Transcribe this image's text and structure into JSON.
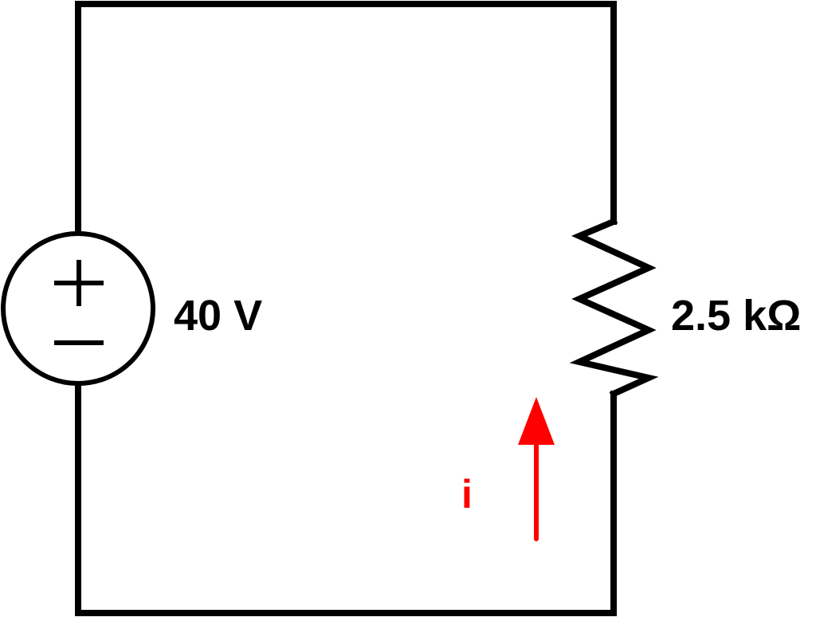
{
  "source": {
    "label": "40 V",
    "plus_symbol": "plus-sign",
    "minus_symbol": "minus-sign"
  },
  "resistor": {
    "label": "2.5 kΩ"
  },
  "current": {
    "label": "i",
    "direction": "up",
    "color": "#ff0000"
  },
  "colors": {
    "wire": "#000000",
    "background": "#ffffff"
  }
}
